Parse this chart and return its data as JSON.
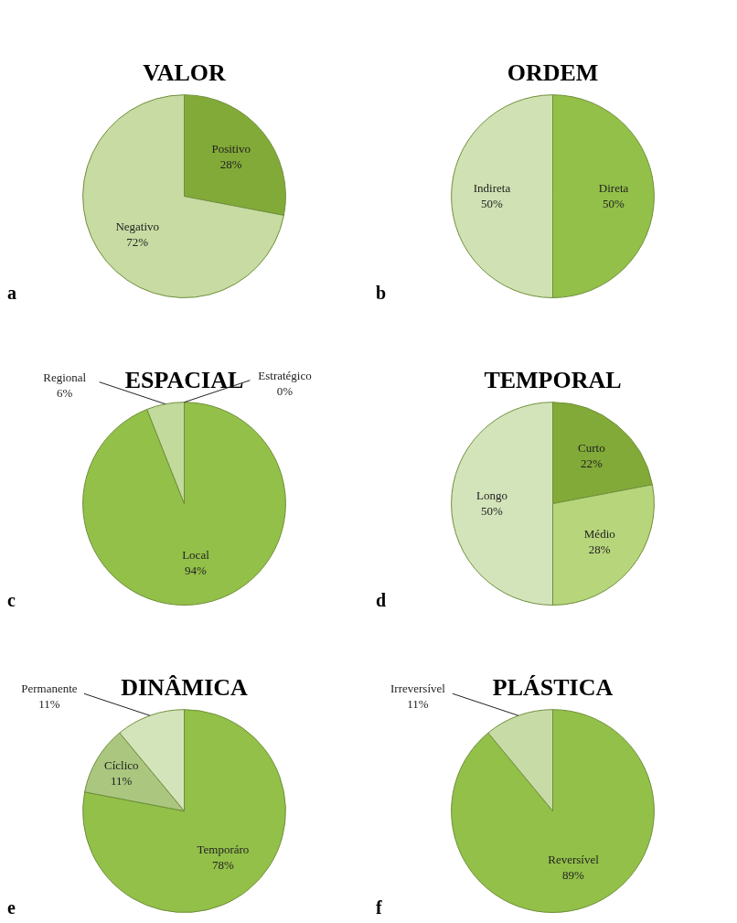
{
  "chart_data": [
    {
      "type": "pie",
      "title": "VALOR",
      "categories": [
        "Positivo",
        "Negativo"
      ],
      "values": [
        28,
        72
      ],
      "value_labels": [
        "28%",
        "72%"
      ],
      "colors": [
        "#82aa38",
        "#c7dba3"
      ],
      "annotations": [
        "a"
      ]
    },
    {
      "type": "pie",
      "title": "ORDEM",
      "categories": [
        "Direta",
        "Indireta"
      ],
      "values": [
        50,
        50
      ],
      "value_labels": [
        "50%",
        "50%"
      ],
      "colors": [
        "#93c049",
        "#d0e2b3"
      ],
      "annotations": [
        "b"
      ]
    },
    {
      "type": "pie",
      "title": "ESPACIAL",
      "categories": [
        "Local",
        "Regional",
        "Estratégico"
      ],
      "values": [
        94,
        6,
        0
      ],
      "value_labels": [
        "94%",
        "6%",
        "0%"
      ],
      "colors": [
        "#93c049",
        "#c2da9c",
        "#a9c47e"
      ],
      "annotations": [
        "c"
      ]
    },
    {
      "type": "pie",
      "title": "TEMPORAL",
      "categories": [
        "Curto",
        "Médio",
        "Longo"
      ],
      "values": [
        22,
        28,
        50
      ],
      "value_labels": [
        "22%",
        "28%",
        "50%"
      ],
      "colors": [
        "#82aa38",
        "#b7d67c",
        "#d4e4ba"
      ],
      "annotations": [
        "d"
      ]
    },
    {
      "type": "pie",
      "title": "DINÂMICA",
      "categories": [
        "Temporáro",
        "Cíclico",
        "Permanente"
      ],
      "values": [
        78,
        11,
        11
      ],
      "value_labels": [
        "78%",
        "11%",
        "11%"
      ],
      "colors": [
        "#93c049",
        "#aac67f",
        "#d4e4ba"
      ],
      "annotations": [
        "e"
      ]
    },
    {
      "type": "pie",
      "title": "PLÁSTICA",
      "categories": [
        "Reversível",
        "Irreversível"
      ],
      "values": [
        89,
        11
      ],
      "value_labels": [
        "89%",
        "11%"
      ],
      "colors": [
        "#93c049",
        "#c7dba7"
      ],
      "annotations": [
        "f"
      ]
    }
  ]
}
